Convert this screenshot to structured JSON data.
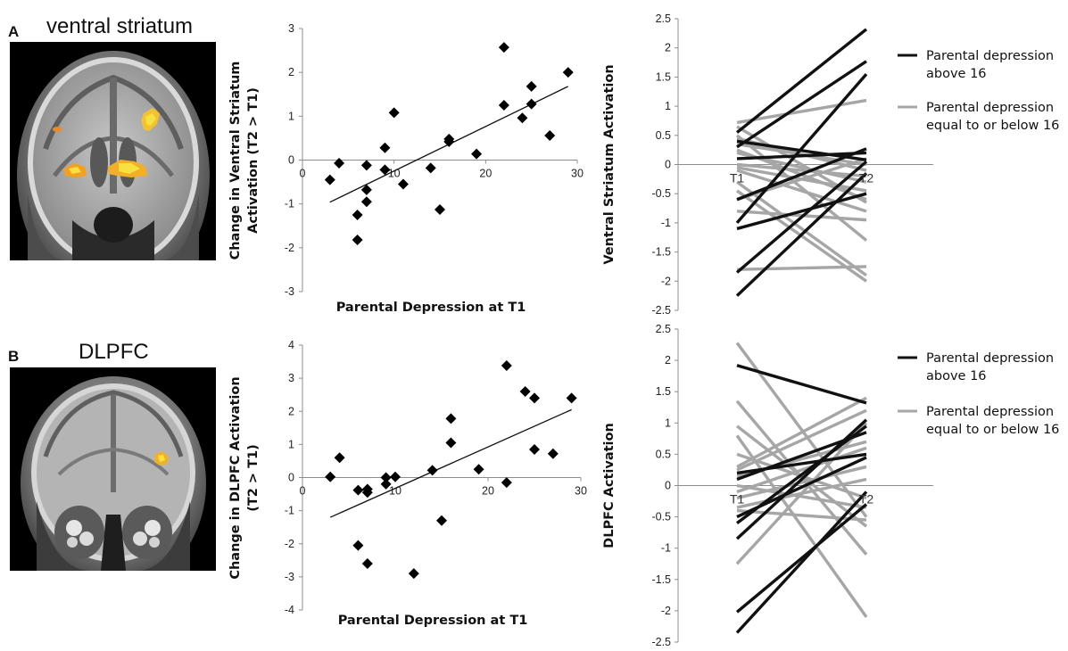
{
  "panels": {
    "a": {
      "letter": "A",
      "title": "ventral striatum"
    },
    "b": {
      "letter": "B",
      "title": "DLPFC"
    }
  },
  "chart_data": [
    {
      "id": "scatter-a",
      "type": "scatter",
      "xlabel": "Parental Depression at T1",
      "ylabel_lines": [
        "Change in Ventral Striatum",
        "Activation (T2 > T1)"
      ],
      "xlim": [
        0,
        30
      ],
      "ylim": [
        -3,
        3
      ],
      "xticks": [
        0,
        10,
        20,
        30
      ],
      "yticks": [
        -3,
        -2,
        -1,
        0,
        1,
        2,
        3
      ],
      "points": [
        {
          "x": 3,
          "y": -0.45
        },
        {
          "x": 4,
          "y": -0.07
        },
        {
          "x": 6,
          "y": -1.25
        },
        {
          "x": 6,
          "y": -1.82
        },
        {
          "x": 7,
          "y": -0.12
        },
        {
          "x": 7,
          "y": -0.68
        },
        {
          "x": 7,
          "y": -0.95
        },
        {
          "x": 9,
          "y": -0.22
        },
        {
          "x": 9,
          "y": 0.28
        },
        {
          "x": 10,
          "y": 1.08
        },
        {
          "x": 11,
          "y": -0.55
        },
        {
          "x": 14,
          "y": -0.18
        },
        {
          "x": 15,
          "y": -1.13
        },
        {
          "x": 16,
          "y": 0.42
        },
        {
          "x": 16,
          "y": 0.48
        },
        {
          "x": 19,
          "y": 0.14
        },
        {
          "x": 22,
          "y": 2.57
        },
        {
          "x": 22,
          "y": 1.25
        },
        {
          "x": 24,
          "y": 0.96
        },
        {
          "x": 25,
          "y": 1.68
        },
        {
          "x": 25,
          "y": 1.28
        },
        {
          "x": 27,
          "y": 0.56
        },
        {
          "x": 29,
          "y": 2.0
        }
      ],
      "trendline": [
        {
          "x": 3,
          "y": -0.96
        },
        {
          "x": 29,
          "y": 1.68
        }
      ]
    },
    {
      "id": "lines-a",
      "type": "line",
      "ylabel": "Ventral Striatum Activation",
      "categories": [
        "T1",
        "T2"
      ],
      "ylim": [
        -2.5,
        2.5
      ],
      "yticks": [
        "-2.5",
        "-2",
        "-1.5",
        "-1",
        "-0.5",
        "0",
        "0.5",
        "1",
        "1.5",
        "2",
        "2.5"
      ],
      "legend": [
        "Parental depression above 16",
        "Parental depression equal to or below 16"
      ],
      "legend_lines": [
        [
          "Parental depression",
          "above 16"
        ],
        [
          "Parental depression",
          "equal to or below 16"
        ]
      ],
      "colors": {
        "above": "#111111",
        "below": "#a6a6a6"
      },
      "series": [
        {
          "group": "above",
          "values": [
            0.55,
            2.32
          ]
        },
        {
          "group": "above",
          "values": [
            0.3,
            1.77
          ]
        },
        {
          "group": "above",
          "values": [
            -1.0,
            1.55
          ]
        },
        {
          "group": "above",
          "values": [
            0.4,
            0.08
          ]
        },
        {
          "group": "above",
          "values": [
            -0.6,
            0.27
          ]
        },
        {
          "group": "above",
          "values": [
            -1.1,
            -0.5
          ]
        },
        {
          "group": "above",
          "values": [
            -1.85,
            0.05
          ]
        },
        {
          "group": "above",
          "values": [
            -2.25,
            -0.15
          ]
        },
        {
          "group": "above",
          "values": [
            0.1,
            0.2
          ]
        },
        {
          "group": "below",
          "values": [
            0.72,
            1.1
          ]
        },
        {
          "group": "below",
          "values": [
            0.65,
            -0.65
          ]
        },
        {
          "group": "below",
          "values": [
            0.5,
            -1.3
          ]
        },
        {
          "group": "below",
          "values": [
            0.35,
            0.0
          ]
        },
        {
          "group": "below",
          "values": [
            0.2,
            -0.3
          ]
        },
        {
          "group": "below",
          "values": [
            0.0,
            -0.2
          ]
        },
        {
          "group": "below",
          "values": [
            -0.1,
            -0.8
          ]
        },
        {
          "group": "below",
          "values": [
            -0.3,
            -1.9
          ]
        },
        {
          "group": "below",
          "values": [
            -0.45,
            -2.0
          ]
        },
        {
          "group": "below",
          "values": [
            -0.6,
            0.1
          ]
        },
        {
          "group": "below",
          "values": [
            -0.8,
            -0.95
          ]
        },
        {
          "group": "below",
          "values": [
            -1.8,
            -1.75
          ]
        },
        {
          "group": "below",
          "values": [
            0.45,
            -0.1
          ]
        },
        {
          "group": "below",
          "values": [
            -0.05,
            -0.45
          ]
        },
        {
          "group": "below",
          "values": [
            0.25,
            -0.6
          ]
        }
      ]
    },
    {
      "id": "scatter-b",
      "type": "scatter",
      "xlabel": "Parental Depression at T1",
      "ylabel_lines": [
        "Change in DLPFC Activation",
        "(T2 > T1)"
      ],
      "xlim": [
        0,
        30
      ],
      "ylim": [
        -4,
        4
      ],
      "xticks": [
        0,
        10,
        20,
        30
      ],
      "yticks": [
        -4,
        -3,
        -2,
        -1,
        0,
        1,
        2,
        3,
        4
      ],
      "points": [
        {
          "x": 3,
          "y": 0.02
        },
        {
          "x": 4,
          "y": 0.6
        },
        {
          "x": 6,
          "y": -0.38
        },
        {
          "x": 6,
          "y": -2.05
        },
        {
          "x": 7,
          "y": -0.35
        },
        {
          "x": 7,
          "y": -0.45
        },
        {
          "x": 7,
          "y": -2.6
        },
        {
          "x": 9,
          "y": -0.2
        },
        {
          "x": 9,
          "y": 0.0
        },
        {
          "x": 10,
          "y": 0.02
        },
        {
          "x": 12,
          "y": -2.9
        },
        {
          "x": 14,
          "y": 0.22
        },
        {
          "x": 15,
          "y": -1.3
        },
        {
          "x": 16,
          "y": 1.05
        },
        {
          "x": 16,
          "y": 1.78
        },
        {
          "x": 19,
          "y": 0.25
        },
        {
          "x": 22,
          "y": 3.38
        },
        {
          "x": 22,
          "y": -0.15
        },
        {
          "x": 24,
          "y": 2.6
        },
        {
          "x": 25,
          "y": 2.4
        },
        {
          "x": 25,
          "y": 0.85
        },
        {
          "x": 27,
          "y": 0.72
        },
        {
          "x": 29,
          "y": 2.4
        }
      ],
      "trendline": [
        {
          "x": 3,
          "y": -1.2
        },
        {
          "x": 29,
          "y": 2.05
        }
      ]
    },
    {
      "id": "lines-b",
      "type": "line",
      "ylabel": "DLPFC Activation",
      "categories": [
        "T1",
        "T2"
      ],
      "ylim": [
        -2.5,
        2.5
      ],
      "yticks": [
        "-2.5",
        "-2",
        "-1.5",
        "-1",
        "-0.5",
        "0",
        "0.5",
        "1",
        "1.5",
        "2",
        "2.5"
      ],
      "legend": [
        "Parental depression above 16",
        "Parental depression equal to or below 16"
      ],
      "legend_lines": [
        [
          "Parental depression",
          "above 16"
        ],
        [
          "Parental depression",
          "equal to or below 16"
        ]
      ],
      "colors": {
        "above": "#111111",
        "below": "#a6a6a6"
      },
      "series": [
        {
          "group": "above",
          "values": [
            1.92,
            1.32
          ]
        },
        {
          "group": "above",
          "values": [
            0.2,
            0.5
          ]
        },
        {
          "group": "above",
          "values": [
            0.1,
            0.85
          ]
        },
        {
          "group": "above",
          "values": [
            -0.5,
            0.45
          ]
        },
        {
          "group": "above",
          "values": [
            -0.6,
            0.95
          ]
        },
        {
          "group": "above",
          "values": [
            -0.85,
            1.05
          ]
        },
        {
          "group": "above",
          "values": [
            -2.02,
            -0.3
          ]
        },
        {
          "group": "above",
          "values": [
            -2.35,
            -0.1
          ]
        },
        {
          "group": "below",
          "values": [
            2.28,
            -0.5
          ]
        },
        {
          "group": "below",
          "values": [
            1.35,
            -1.1
          ]
        },
        {
          "group": "below",
          "values": [
            0.95,
            -0.65
          ]
        },
        {
          "group": "below",
          "values": [
            0.8,
            -2.1
          ]
        },
        {
          "group": "below",
          "values": [
            0.3,
            1.4
          ]
        },
        {
          "group": "below",
          "values": [
            0.25,
            1.2
          ]
        },
        {
          "group": "below",
          "values": [
            0.15,
            0.7
          ]
        },
        {
          "group": "below",
          "values": [
            0.0,
            -0.35
          ]
        },
        {
          "group": "below",
          "values": [
            -0.2,
            0.3
          ]
        },
        {
          "group": "below",
          "values": [
            -0.35,
            0.1
          ]
        },
        {
          "group": "below",
          "values": [
            -0.4,
            -0.55
          ]
        },
        {
          "group": "below",
          "values": [
            -1.25,
            1.0
          ]
        },
        {
          "group": "below",
          "values": [
            0.5,
            -0.2
          ]
        },
        {
          "group": "below",
          "values": [
            -0.1,
            0.6
          ]
        }
      ]
    }
  ]
}
